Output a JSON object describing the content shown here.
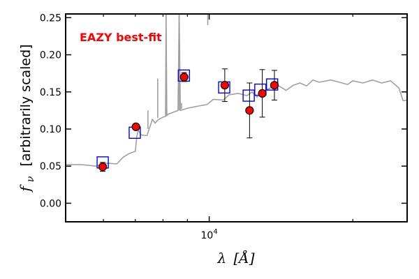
{
  "chart_data": {
    "type": "scatter",
    "title": "",
    "annotation": "EAZY best-fit",
    "xlabel_parts": {
      "symbol": "λ",
      "unit": "[Å]"
    },
    "ylabel_parts": {
      "symbol": "f",
      "subscript": "ν",
      "text": "[arbitrarily scaled]"
    },
    "x_scale": "log",
    "xlim": [
      5000,
      26000
    ],
    "ylim": [
      -0.025,
      0.255
    ],
    "x_ticks": [
      {
        "value": 10000,
        "label": "10^4"
      }
    ],
    "y_ticks": [
      {
        "value": 0.0,
        "label": "0.00"
      },
      {
        "value": 0.05,
        "label": "0.05"
      },
      {
        "value": 0.1,
        "label": "0.10"
      },
      {
        "value": 0.15,
        "label": "0.15"
      },
      {
        "value": 0.2,
        "label": "0.20"
      },
      {
        "value": 0.25,
        "label": "0.25"
      }
    ],
    "grid": false,
    "colors": {
      "spectrum": "#a0a0a0",
      "observed": "#ff0000",
      "model": "#0000ff",
      "annotation": "#ff0000"
    },
    "spectrum": {
      "x": [
        5000,
        5400,
        5800,
        6100,
        6400,
        6600,
        6800,
        7000,
        7050,
        7100,
        7140,
        7200,
        7400,
        7440,
        7600,
        7700,
        7800,
        8000,
        8100,
        8120,
        8150,
        8200,
        8600,
        8650,
        8700,
        9000,
        9500,
        9900,
        10200,
        10700,
        11000,
        11500,
        12000,
        12300,
        12600,
        13000,
        13500,
        14000,
        14500,
        15000,
        15500,
        16000,
        16500,
        17000,
        18000,
        19000,
        19500,
        20000,
        21000,
        22000,
        23000,
        24000,
        25000,
        25500,
        26000
      ],
      "y": [
        0.052,
        0.052,
        0.05,
        0.054,
        0.053,
        0.062,
        0.067,
        0.07,
        0.09,
        0.098,
        0.096,
        0.092,
        0.091,
        0.095,
        0.113,
        0.108,
        0.112,
        0.116,
        0.117,
        0.255,
        0.118,
        0.12,
        0.125,
        0.255,
        0.125,
        0.128,
        0.131,
        0.133,
        0.14,
        0.139,
        0.146,
        0.148,
        0.145,
        0.15,
        0.143,
        0.151,
        0.156,
        0.158,
        0.152,
        0.159,
        0.162,
        0.158,
        0.166,
        0.163,
        0.166,
        0.162,
        0.16,
        0.165,
        0.162,
        0.166,
        0.162,
        0.165,
        0.155,
        0.138,
        0.139
      ]
    },
    "spikes": [
      {
        "x": 7440,
        "y0": 0.1,
        "y1": 0.125
      },
      {
        "x": 7800,
        "y0": 0.115,
        "y1": 0.168
      },
      {
        "x": 8120,
        "y0": 0.118,
        "y1": 0.255
      },
      {
        "x": 8650,
        "y0": 0.125,
        "y1": 0.255
      },
      {
        "x": 8750,
        "y0": 0.127,
        "y1": 0.135
      },
      {
        "x": 9930,
        "y0": 0.24,
        "y1": 0.255
      }
    ],
    "model_points": [
      {
        "x": 5980,
        "y": 0.055
      },
      {
        "x": 6980,
        "y": 0.095
      },
      {
        "x": 8850,
        "y": 0.172
      },
      {
        "x": 10750,
        "y": 0.156
      },
      {
        "x": 12100,
        "y": 0.145
      },
      {
        "x": 12800,
        "y": 0.153
      },
      {
        "x": 13550,
        "y": 0.16
      }
    ],
    "observed_points": [
      {
        "x": 5980,
        "y": 0.049,
        "err": 0.006
      },
      {
        "x": 7020,
        "y": 0.103,
        "err": 0.004
      },
      {
        "x": 8860,
        "y": 0.17,
        "err": 0.006
      },
      {
        "x": 10780,
        "y": 0.159,
        "err": 0.022
      },
      {
        "x": 12150,
        "y": 0.125,
        "err": 0.037
      },
      {
        "x": 12920,
        "y": 0.148,
        "err": 0.032
      },
      {
        "x": 13700,
        "y": 0.159,
        "err": 0.02
      }
    ]
  }
}
